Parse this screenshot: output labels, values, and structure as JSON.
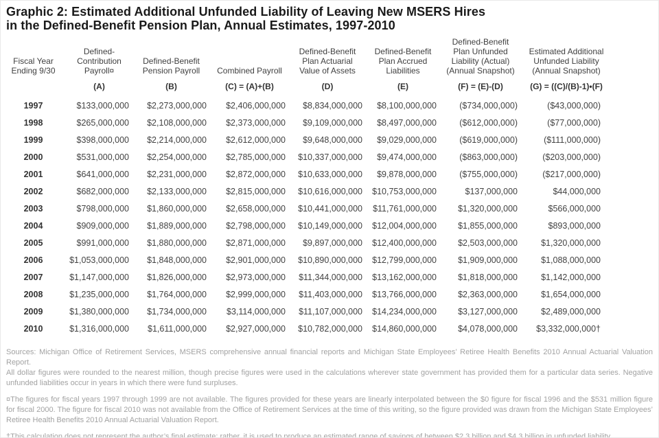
{
  "title": {
    "line1": "Graphic 2: Estimated Additional Unfunded Liability of Leaving New MSERS Hires",
    "line2": "in the Defined-Benefit Pension Plan, Annual Estimates, 1997-2010"
  },
  "table": {
    "columns": [
      {
        "label": "Fiscal Year\nEnding 9/30",
        "formula": ""
      },
      {
        "label": "Defined-\nContribution\nPayroll¤",
        "formula": "(A)"
      },
      {
        "label": "Defined-Benefit\nPension Payroll",
        "formula": "(B)"
      },
      {
        "label": "Combined Payroll",
        "formula": "(C) = (A)+(B)"
      },
      {
        "label": "Defined-Benefit\nPlan Actuarial\nValue of Assets",
        "formula": "(D)"
      },
      {
        "label": "Defined-Benefit\nPlan Accrued\nLiabilities",
        "formula": "(E)"
      },
      {
        "label": "Defined-Benefit\nPlan Unfunded\nLiability (Actual)\n(Annual Snapshot)",
        "formula": "(F) = (E)-(D)"
      },
      {
        "label": "Estimated Additional\nUnfunded Liability\n(Annual Snapshot)",
        "formula": "(G) = ((C)/(B)-1)•(F)"
      }
    ],
    "rows": [
      {
        "year": "1997",
        "values": [
          "$133,000,000",
          "$2,273,000,000",
          "$2,406,000,000",
          "$8,834,000,000",
          "$8,100,000,000",
          "($734,000,000)",
          "($43,000,000)"
        ]
      },
      {
        "year": "1998",
        "values": [
          "$265,000,000",
          "$2,108,000,000",
          "$2,373,000,000",
          "$9,109,000,000",
          "$8,497,000,000",
          "($612,000,000)",
          "($77,000,000)"
        ]
      },
      {
        "year": "1999",
        "values": [
          "$398,000,000",
          "$2,214,000,000",
          "$2,612,000,000",
          "$9,648,000,000",
          "$9,029,000,000",
          "($619,000,000)",
          "($111,000,000)"
        ]
      },
      {
        "year": "2000",
        "values": [
          "$531,000,000",
          "$2,254,000,000",
          "$2,785,000,000",
          "$10,337,000,000",
          "$9,474,000,000",
          "($863,000,000)",
          "($203,000,000)"
        ]
      },
      {
        "year": "2001",
        "values": [
          "$641,000,000",
          "$2,231,000,000",
          "$2,872,000,000",
          "$10,633,000,000",
          "$9,878,000,000",
          "($755,000,000)",
          "($217,000,000)"
        ]
      },
      {
        "year": "2002",
        "values": [
          "$682,000,000",
          "$2,133,000,000",
          "$2,815,000,000",
          "$10,616,000,000",
          "$10,753,000,000",
          "$137,000,000",
          "$44,000,000"
        ]
      },
      {
        "year": "2003",
        "values": [
          "$798,000,000",
          "$1,860,000,000",
          "$2,658,000,000",
          "$10,441,000,000",
          "$11,761,000,000",
          "$1,320,000,000",
          "$566,000,000"
        ]
      },
      {
        "year": "2004",
        "values": [
          "$909,000,000",
          "$1,889,000,000",
          "$2,798,000,000",
          "$10,149,000,000",
          "$12,004,000,000",
          "$1,855,000,000",
          "$893,000,000"
        ]
      },
      {
        "year": "2005",
        "values": [
          "$991,000,000",
          "$1,880,000,000",
          "$2,871,000,000",
          "$9,897,000,000",
          "$12,400,000,000",
          "$2,503,000,000",
          "$1,320,000,000"
        ]
      },
      {
        "year": "2006",
        "values": [
          "$1,053,000,000",
          "$1,848,000,000",
          "$2,901,000,000",
          "$10,890,000,000",
          "$12,799,000,000",
          "$1,909,000,000",
          "$1,088,000,000"
        ]
      },
      {
        "year": "2007",
        "values": [
          "$1,147,000,000",
          "$1,826,000,000",
          "$2,973,000,000",
          "$11,344,000,000",
          "$13,162,000,000",
          "$1,818,000,000",
          "$1,142,000,000"
        ]
      },
      {
        "year": "2008",
        "values": [
          "$1,235,000,000",
          "$1,764,000,000",
          "$2,999,000,000",
          "$11,403,000,000",
          "$13,766,000,000",
          "$2,363,000,000",
          "$1,654,000,000"
        ]
      },
      {
        "year": "2009",
        "values": [
          "$1,380,000,000",
          "$1,734,000,000",
          "$3,114,000,000",
          "$11,107,000,000",
          "$14,234,000,000",
          "$3,127,000,000",
          "$2,489,000,000"
        ]
      },
      {
        "year": "2010",
        "values": [
          "$1,316,000,000",
          "$1,611,000,000",
          "$2,927,000,000",
          "$10,782,000,000",
          "$14,860,000,000",
          "$4,078,000,000",
          "$3,332,000,000†"
        ]
      }
    ]
  },
  "footnotes": {
    "sources": "Sources: Michigan Office of Retirement Services, MSERS comprehensive annual financial reports and Michigan State Employees’ Retiree Health Benefits 2010 Annual Actuarial Valuation Report.\nAll dollar figures were rounded to the nearest million, though precise figures were used in the calculations wherever state government has provided them for a particular data series. Negative unfunded liabilities occur in years in which there were fund surpluses.",
    "interpolation": "¤The figures for fiscal years 1997 through 1999 are not available. The figures provided for these years are linearly interpolated between the $0 figure for fiscal 1996 and the $531 million figure for fiscal 2000. The figure for fiscal 2010 was not available from the Office of Retirement Services at the time of this writing, so the figure provided was drawn from the Michigan State Employees’ Retiree Health Benefits 2010 Annual Actuarial Valuation Report.",
    "dagger": "†This calculation does not represent the author’s final estimate; rather, it is used to produce an estimated range of savings of between $2.3 billion and $4.3 billion in unfunded liability."
  },
  "colors": {
    "background": "#ffffff",
    "title_text": "#1a1a1a",
    "table_text": "#424242",
    "footnote_text": "#a2a2a2",
    "page_border": "#e9e9e9"
  }
}
